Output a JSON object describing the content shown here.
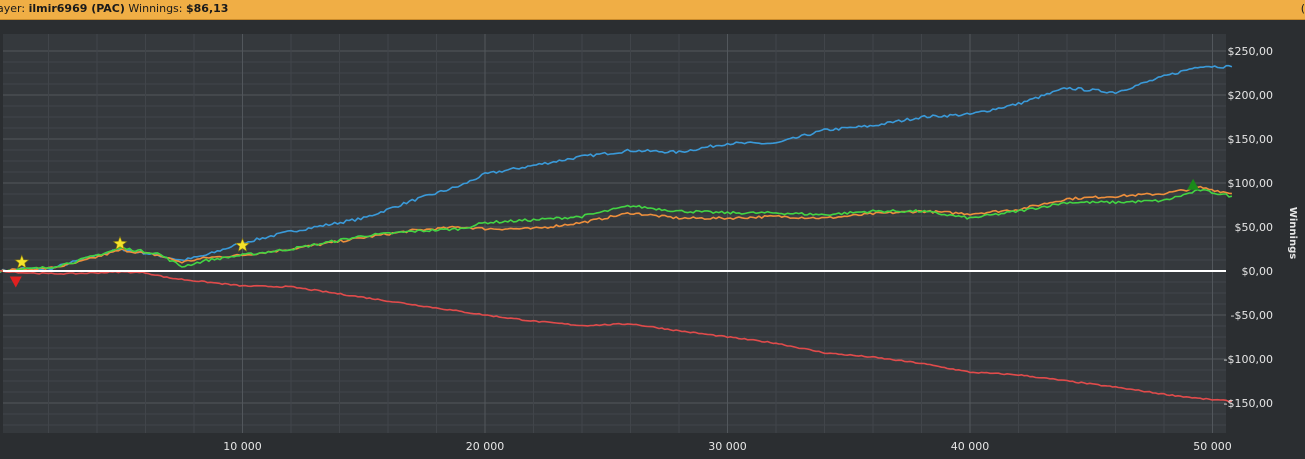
{
  "header": {
    "player_label": "ayer:",
    "player_name": "ilmir6969 (PAC)",
    "winnings_label": "Winnings:",
    "winnings_value": "$86,13",
    "corner_glyph": "("
  },
  "chart_data": {
    "type": "line",
    "ylabel": "Winnings",
    "xlim": [
      0,
      51000
    ],
    "ylim": [
      -185,
      265
    ],
    "x_ticks": [
      10000,
      20000,
      30000,
      40000,
      50000
    ],
    "x_tick_labels": [
      "10 000",
      "20 000",
      "30 000",
      "40 000",
      "50 000"
    ],
    "y_ticks": [
      250,
      200,
      150,
      100,
      50,
      0,
      -50,
      -100,
      -150
    ],
    "y_tick_labels": [
      "$250,00",
      "$200,00",
      "$150,00",
      "$100,00",
      "$50,00",
      "$0,00",
      "-$50,00",
      "-$100,00",
      "-$150,00"
    ],
    "grid": true,
    "colors": {
      "blue": "#3a9ad9",
      "orange": "#ee8f3c",
      "green": "#43d443",
      "red": "#e04b4b",
      "zero": "#ffffff"
    },
    "series": [
      {
        "color": "#3a9ad9",
        "x": [
          0,
          1000,
          2000,
          3000,
          5000,
          6500,
          7500,
          8500,
          10000,
          12000,
          15000,
          17000,
          19000,
          20000,
          22000,
          24000,
          26000,
          28000,
          30000,
          32000,
          34000,
          36000,
          38000,
          40000,
          42000,
          44000,
          46000,
          48000,
          49500,
          50800
        ],
        "y": [
          0,
          3,
          2,
          10,
          25,
          18,
          12,
          18,
          32,
          45,
          60,
          80,
          97,
          110,
          120,
          130,
          137,
          135,
          145,
          145,
          160,
          165,
          175,
          178,
          190,
          208,
          203,
          221,
          233,
          232
        ]
      },
      {
        "color": "#ee8f3c",
        "x": [
          0,
          1000,
          2000,
          3000,
          5000,
          6500,
          7500,
          8500,
          10000,
          12000,
          15000,
          17000,
          19000,
          20000,
          22000,
          24000,
          26000,
          28000,
          30000,
          32000,
          34000,
          36000,
          38000,
          40000,
          42000,
          44000,
          46000,
          48000,
          49500,
          50800
        ],
        "y": [
          0,
          2,
          3,
          8,
          24,
          18,
          10,
          15,
          18,
          25,
          38,
          46,
          50,
          48,
          48,
          55,
          66,
          60,
          60,
          62,
          60,
          65,
          68,
          65,
          70,
          82,
          85,
          88,
          95,
          88
        ]
      },
      {
        "color": "#43d443",
        "x": [
          0,
          1000,
          2000,
          3000,
          5000,
          6500,
          7500,
          8500,
          10000,
          12000,
          15000,
          17000,
          19000,
          20000,
          22000,
          24000,
          26000,
          28000,
          30000,
          32000,
          34000,
          36000,
          38000,
          40000,
          42000,
          44000,
          46000,
          48000,
          49500,
          50800
        ],
        "y": [
          0,
          2,
          4,
          10,
          26,
          20,
          5,
          12,
          18,
          25,
          40,
          45,
          48,
          55,
          58,
          62,
          74,
          68,
          66,
          66,
          64,
          68,
          68,
          60,
          68,
          78,
          78,
          80,
          92,
          85
        ]
      },
      {
        "color": "#e04b4b",
        "x": [
          0,
          1000,
          2000,
          3000,
          5000,
          6000,
          7000,
          10000,
          12000,
          15000,
          17000,
          20000,
          22000,
          24000,
          26000,
          28000,
          30000,
          32000,
          34000,
          36000,
          38000,
          40000,
          42000,
          44000,
          46000,
          48000,
          49500,
          50800
        ],
        "y": [
          0,
          -2,
          -3,
          -3,
          -1,
          -2,
          -8,
          -17,
          -18,
          -30,
          -38,
          -50,
          -57,
          -62,
          -60,
          -68,
          -75,
          -82,
          -93,
          -98,
          -105,
          -115,
          -118,
          -125,
          -132,
          -140,
          -145,
          -148
        ]
      }
    ],
    "markers": [
      {
        "shape": "star",
        "color": "#f5e32a",
        "x": 900,
        "y": 10
      },
      {
        "shape": "star",
        "color": "#f5e32a",
        "x": 4950,
        "y": 31
      },
      {
        "shape": "star",
        "color": "#f5e32a",
        "x": 10000,
        "y": 29
      },
      {
        "shape": "triangle-down",
        "color": "#e02020",
        "x": 650,
        "y": -12
      },
      {
        "shape": "triangle-up",
        "color": "#1a8a1a",
        "x": 49200,
        "y": 98
      }
    ]
  }
}
